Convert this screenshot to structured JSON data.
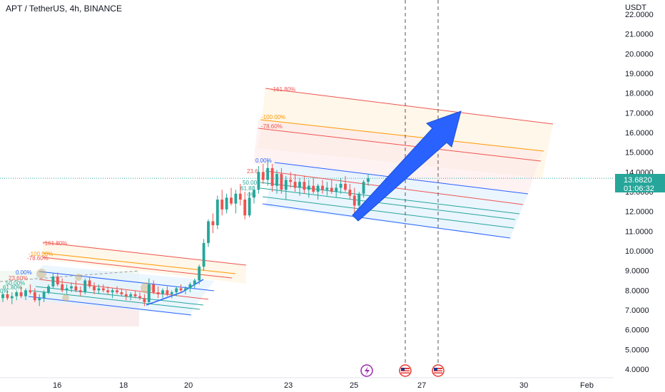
{
  "header": {
    "title": "APT / TetherUS, 4h, BINANCE"
  },
  "chart_data": {
    "type": "candlestick",
    "title": "APT / TetherUS, 4h, BINANCE",
    "ylabel": "USDT",
    "ylim": [
      3.6,
      22.7
    ],
    "y_ticks": [
      "4.0000",
      "5.0000",
      "6.0000",
      "7.0000",
      "8.0000",
      "9.0000",
      "10.0000",
      "11.0000",
      "12.0000",
      "13.0000",
      "14.0000",
      "15.0000",
      "16.0000",
      "17.0000",
      "18.0000",
      "19.0000",
      "20.0000",
      "21.0000",
      "22.0000"
    ],
    "x_ticks": [
      "16",
      "18",
      "20",
      "23",
      "25",
      "27",
      "30",
      "Feb"
    ],
    "current_price": "13.6820",
    "countdown": "01:06:32",
    "last_value": 13.682,
    "fib_labels_upper": [
      "-161.80%",
      "-100.00%",
      "-78.60%",
      "0.00%",
      "23.6",
      "50.00",
      "61.80",
      "0%"
    ],
    "fib_labels_lower": [
      "-161.80%",
      "-100.00%",
      "-78.60%",
      "0.00%",
      "23.60%",
      "50.00%",
      "61.80%",
      "0%"
    ],
    "grid": false,
    "colors": {
      "up": "#26a69a",
      "down": "#ef5350",
      "arrow": "#2962ff",
      "price_line": "#26a69a"
    },
    "candles": [
      [
        7.6,
        7.9,
        7.4,
        7.8
      ],
      [
        7.8,
        8.0,
        7.5,
        7.6
      ],
      [
        7.6,
        7.9,
        7.3,
        7.7
      ],
      [
        7.7,
        8.0,
        7.5,
        7.9
      ],
      [
        7.9,
        8.2,
        7.6,
        7.7
      ],
      [
        7.7,
        8.1,
        7.5,
        8.0
      ],
      [
        8.0,
        8.3,
        7.8,
        7.9
      ],
      [
        7.9,
        8.1,
        7.4,
        7.5
      ],
      [
        7.5,
        7.8,
        7.2,
        7.6
      ],
      [
        7.6,
        8.0,
        7.4,
        7.9
      ],
      [
        7.9,
        8.3,
        7.8,
        8.2
      ],
      [
        8.2,
        8.9,
        8.1,
        8.7
      ],
      [
        8.7,
        8.9,
        8.2,
        8.3
      ],
      [
        8.3,
        8.6,
        7.9,
        8.0
      ],
      [
        8.0,
        8.3,
        7.8,
        8.1
      ],
      [
        8.1,
        8.4,
        7.9,
        8.2
      ],
      [
        8.2,
        8.5,
        7.9,
        8.0
      ],
      [
        8.0,
        8.2,
        7.7,
        7.9
      ],
      [
        7.9,
        8.6,
        7.8,
        8.5
      ],
      [
        8.5,
        8.7,
        8.1,
        8.2
      ],
      [
        8.2,
        8.4,
        7.8,
        8.0
      ],
      [
        8.0,
        8.3,
        7.8,
        8.1
      ],
      [
        8.1,
        8.3,
        7.9,
        8.0
      ],
      [
        8.0,
        8.2,
        7.8,
        7.9
      ],
      [
        7.9,
        8.1,
        7.6,
        8.0
      ],
      [
        8.0,
        8.2,
        7.8,
        7.9
      ],
      [
        7.9,
        8.1,
        7.7,
        7.8
      ],
      [
        7.8,
        8.0,
        7.5,
        7.7
      ],
      [
        7.7,
        7.9,
        7.5,
        7.8
      ],
      [
        7.8,
        8.0,
        7.6,
        7.7
      ],
      [
        7.7,
        7.9,
        7.5,
        7.6
      ],
      [
        7.6,
        7.8,
        7.2,
        7.4
      ],
      [
        7.4,
        8.6,
        7.3,
        8.3
      ],
      [
        8.3,
        8.5,
        7.8,
        7.9
      ],
      [
        7.9,
        8.2,
        7.6,
        7.8
      ],
      [
        7.8,
        8.1,
        7.6,
        8.0
      ],
      [
        8.0,
        8.2,
        7.7,
        7.8
      ],
      [
        7.8,
        8.0,
        7.6,
        7.9
      ],
      [
        7.9,
        8.2,
        7.7,
        8.1
      ],
      [
        8.1,
        8.3,
        7.9,
        8.0
      ],
      [
        8.0,
        8.2,
        7.8,
        8.1
      ],
      [
        8.1,
        8.4,
        7.9,
        8.3
      ],
      [
        8.3,
        8.6,
        8.1,
        8.5
      ],
      [
        8.5,
        9.3,
        8.3,
        9.2
      ],
      [
        9.2,
        10.6,
        9.0,
        10.4
      ],
      [
        10.4,
        11.6,
        10.2,
        11.5
      ],
      [
        11.5,
        11.9,
        10.9,
        11.3
      ],
      [
        11.3,
        12.8,
        11.1,
        12.6
      ],
      [
        12.6,
        13.1,
        11.8,
        12.1
      ],
      [
        12.1,
        12.9,
        11.9,
        12.7
      ],
      [
        12.7,
        13.2,
        12.3,
        12.4
      ],
      [
        12.4,
        13.1,
        11.9,
        12.9
      ],
      [
        12.9,
        13.4,
        12.3,
        12.6
      ],
      [
        12.6,
        13.0,
        11.6,
        11.8
      ],
      [
        11.8,
        13.0,
        11.7,
        12.7
      ],
      [
        12.7,
        13.3,
        12.4,
        13.1
      ],
      [
        13.1,
        14.3,
        12.9,
        14.0
      ],
      [
        14.0,
        14.4,
        13.4,
        13.6
      ],
      [
        13.6,
        14.6,
        13.3,
        14.2
      ],
      [
        14.2,
        14.4,
        13.0,
        13.3
      ],
      [
        13.3,
        14.1,
        12.9,
        13.9
      ],
      [
        13.9,
        14.2,
        12.9,
        13.1
      ],
      [
        13.1,
        13.8,
        12.6,
        13.6
      ],
      [
        13.6,
        14.0,
        13.2,
        13.5
      ],
      [
        13.5,
        13.9,
        13.0,
        13.2
      ],
      [
        13.2,
        13.7,
        12.8,
        13.5
      ],
      [
        13.5,
        13.8,
        12.9,
        13.1
      ],
      [
        13.1,
        13.6,
        12.7,
        13.3
      ],
      [
        13.3,
        13.7,
        12.9,
        13.0
      ],
      [
        13.0,
        13.4,
        12.6,
        13.3
      ],
      [
        13.3,
        13.6,
        12.9,
        13.1
      ],
      [
        13.1,
        13.5,
        12.8,
        13.2
      ],
      [
        13.2,
        13.6,
        12.9,
        13.0
      ],
      [
        13.0,
        13.4,
        12.7,
        13.2
      ],
      [
        13.2,
        13.7,
        12.9,
        13.4
      ],
      [
        13.4,
        13.8,
        13.0,
        13.1
      ],
      [
        13.1,
        13.4,
        12.6,
        12.8
      ],
      [
        12.8,
        13.2,
        11.9,
        12.3
      ],
      [
        12.3,
        13.0,
        12.1,
        12.9
      ],
      [
        12.9,
        13.6,
        12.7,
        13.5
      ],
      [
        13.5,
        13.9,
        13.3,
        13.68
      ]
    ]
  }
}
